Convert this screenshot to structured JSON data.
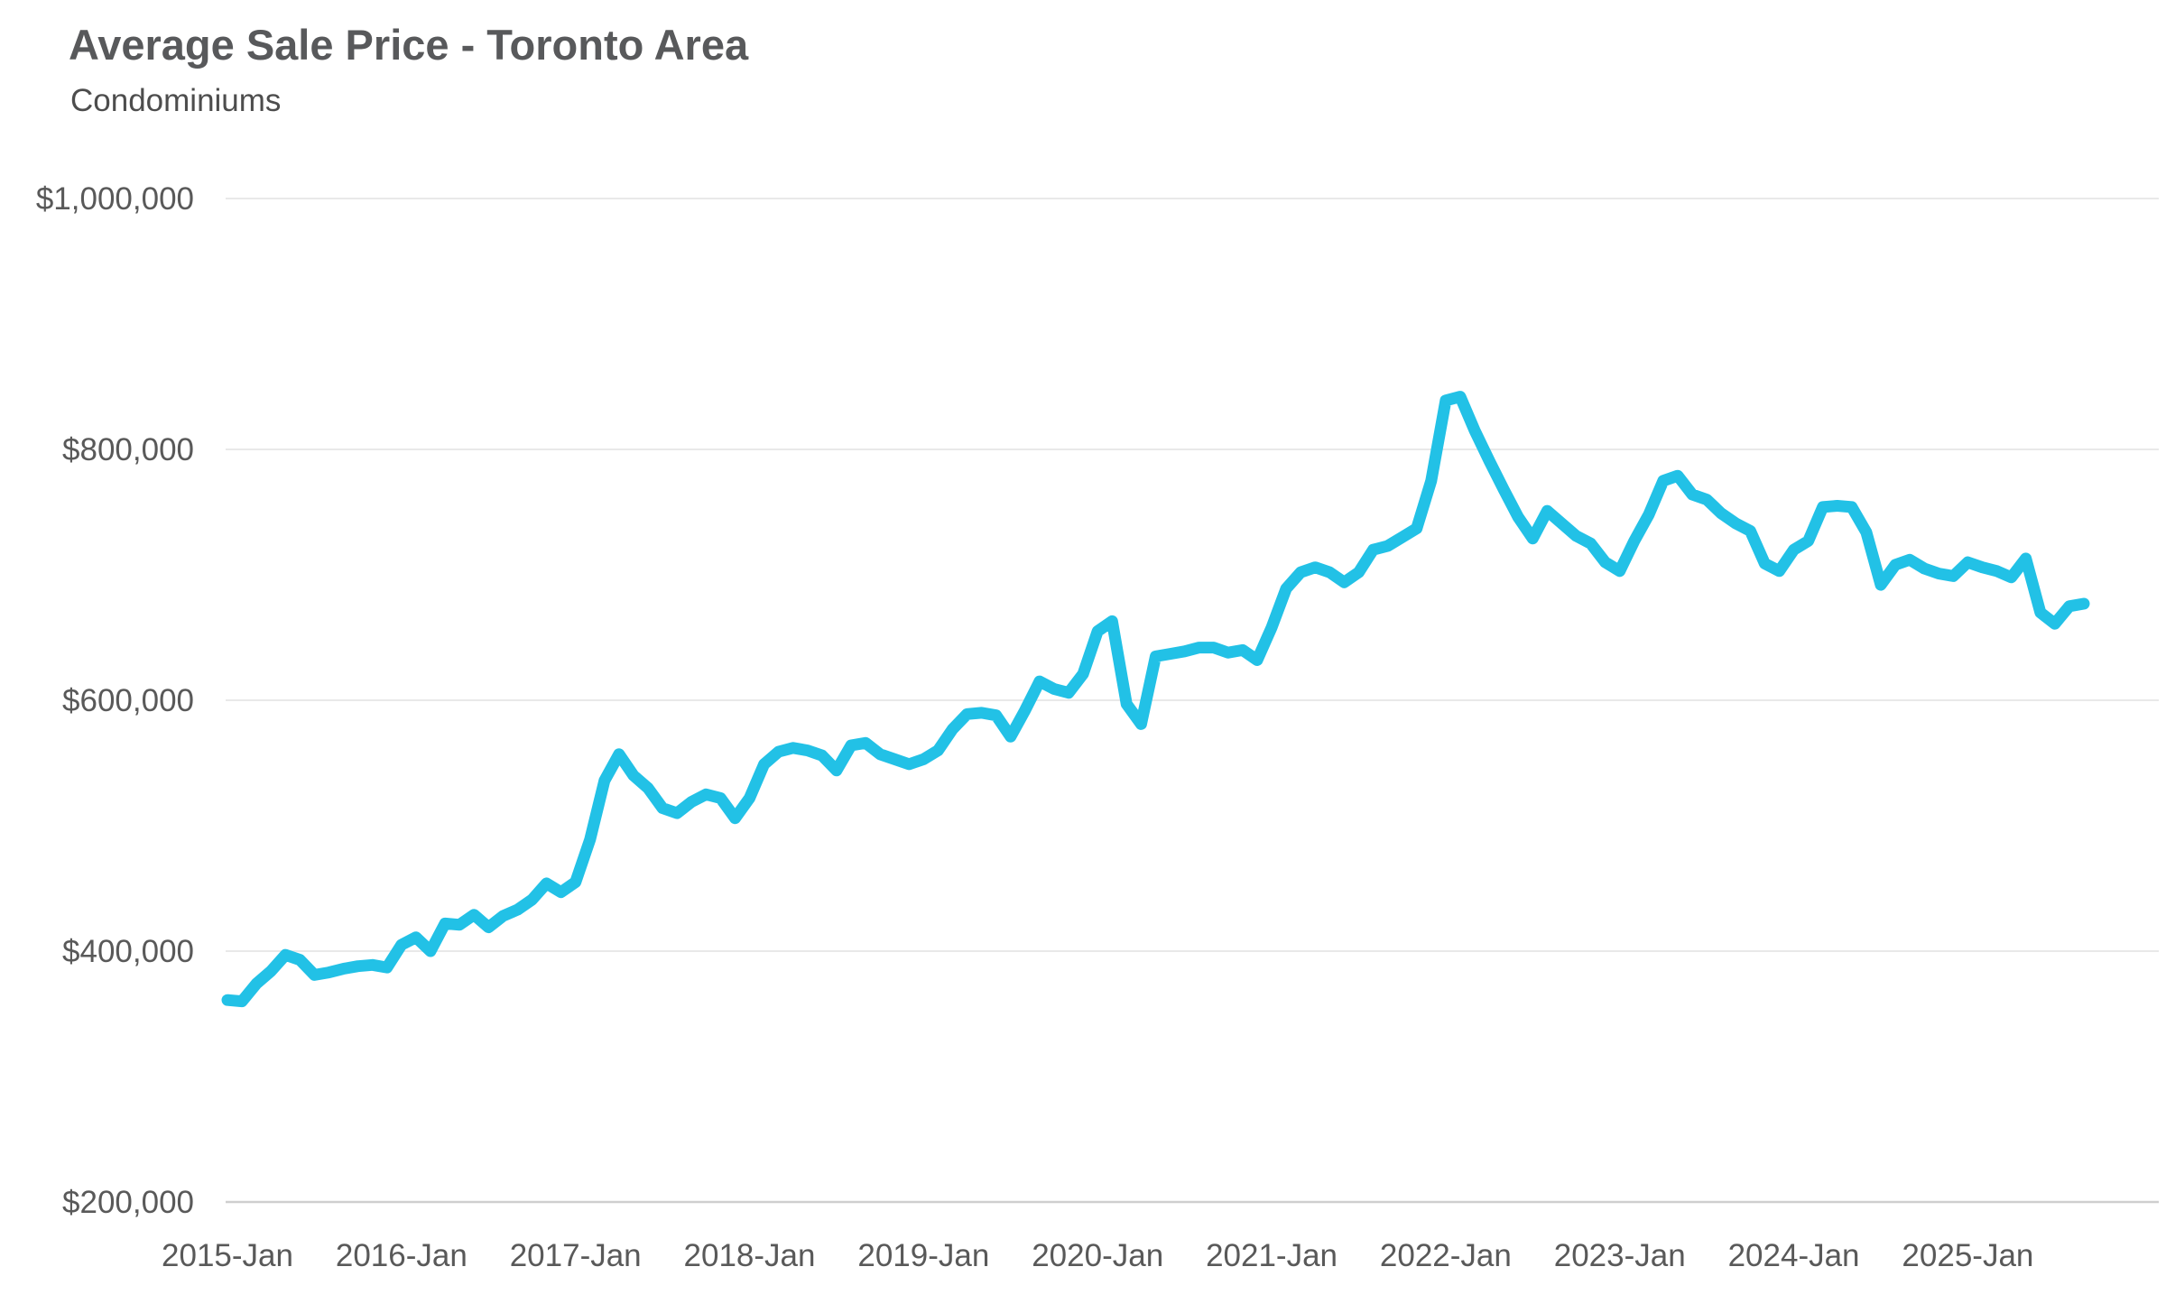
{
  "header": {
    "title": "Average Sale Price - Toronto Area",
    "subtitle": "Condominiums"
  },
  "chart_data": {
    "type": "line",
    "title": "Average Sale Price - Toronto Area",
    "subtitle": "Condominiums",
    "xlabel": "",
    "ylabel": "",
    "ylim": [
      200000,
      1000000
    ],
    "grid": "horizontal",
    "legend": "none",
    "line_color": "#22c1e6",
    "y_ticks": [
      {
        "value": 1000000,
        "label": "$1,000,000"
      },
      {
        "value": 800000,
        "label": "$800,000"
      },
      {
        "value": 600000,
        "label": "$600,000"
      },
      {
        "value": 400000,
        "label": "$400,000"
      },
      {
        "value": 200000,
        "label": "$200,000"
      }
    ],
    "x_ticks": [
      {
        "index": 0,
        "label": "2015-Jan"
      },
      {
        "index": 12,
        "label": "2016-Jan"
      },
      {
        "index": 24,
        "label": "2017-Jan"
      },
      {
        "index": 36,
        "label": "2018-Jan"
      },
      {
        "index": 48,
        "label": "2019-Jan"
      },
      {
        "index": 60,
        "label": "2020-Jan"
      },
      {
        "index": 72,
        "label": "2021-Jan"
      },
      {
        "index": 84,
        "label": "2022-Jan"
      },
      {
        "index": 96,
        "label": "2023-Jan"
      },
      {
        "index": 108,
        "label": "2024-Jan"
      },
      {
        "index": 120,
        "label": "2025-Jan"
      }
    ],
    "series": [
      {
        "name": "Average Sale Price - Condominiums",
        "months": [
          "2015-Jan",
          "2015-Feb",
          "2015-Mar",
          "2015-Apr",
          "2015-May",
          "2015-Jun",
          "2015-Jul",
          "2015-Aug",
          "2015-Sep",
          "2015-Oct",
          "2015-Nov",
          "2015-Dec",
          "2016-Jan",
          "2016-Feb",
          "2016-Mar",
          "2016-Apr",
          "2016-May",
          "2016-Jun",
          "2016-Jul",
          "2016-Aug",
          "2016-Sep",
          "2016-Oct",
          "2016-Nov",
          "2016-Dec",
          "2017-Jan",
          "2017-Feb",
          "2017-Mar",
          "2017-Apr",
          "2017-May",
          "2017-Jun",
          "2017-Jul",
          "2017-Aug",
          "2017-Sep",
          "2017-Oct",
          "2017-Nov",
          "2017-Dec",
          "2018-Jan",
          "2018-Feb",
          "2018-Mar",
          "2018-Apr",
          "2018-May",
          "2018-Jun",
          "2018-Jul",
          "2018-Aug",
          "2018-Sep",
          "2018-Oct",
          "2018-Nov",
          "2018-Dec",
          "2019-Jan",
          "2019-Feb",
          "2019-Mar",
          "2019-Apr",
          "2019-May",
          "2019-Jun",
          "2019-Jul",
          "2019-Aug",
          "2019-Sep",
          "2019-Oct",
          "2019-Nov",
          "2019-Dec",
          "2020-Jan",
          "2020-Feb",
          "2020-Mar",
          "2020-Apr",
          "2020-May",
          "2020-Jun",
          "2020-Jul",
          "2020-Aug",
          "2020-Sep",
          "2020-Oct",
          "2020-Nov",
          "2020-Dec",
          "2021-Jan",
          "2021-Feb",
          "2021-Mar",
          "2021-Apr",
          "2021-May",
          "2021-Jun",
          "2021-Jul",
          "2021-Aug",
          "2021-Sep",
          "2021-Oct",
          "2021-Nov",
          "2021-Dec",
          "2022-Jan",
          "2022-Feb",
          "2022-Mar",
          "2022-Apr",
          "2022-May",
          "2022-Jun",
          "2022-Jul",
          "2022-Aug",
          "2022-Sep",
          "2022-Oct",
          "2022-Nov",
          "2022-Dec",
          "2023-Jan",
          "2023-Feb",
          "2023-Mar",
          "2023-Apr",
          "2023-May",
          "2023-Jun",
          "2023-Jul",
          "2023-Aug",
          "2023-Sep",
          "2023-Oct",
          "2023-Nov",
          "2023-Dec",
          "2024-Jan",
          "2024-Feb",
          "2024-Mar",
          "2024-Apr",
          "2024-May",
          "2024-Jun",
          "2024-Jul",
          "2024-Aug",
          "2024-Sep",
          "2024-Oct",
          "2024-Nov",
          "2024-Dec",
          "2025-Jan",
          "2025-Feb",
          "2025-Mar",
          "2025-Apr",
          "2025-May",
          "2025-Jun",
          "2025-Jul",
          "2025-Aug",
          "2025-Sep"
        ],
        "values": [
          361000,
          360000,
          374000,
          384000,
          397000,
          393000,
          381000,
          383000,
          386000,
          388000,
          389000,
          387000,
          405000,
          411000,
          400000,
          422000,
          421000,
          429000,
          419000,
          428000,
          433000,
          441000,
          454000,
          447000,
          455000,
          489000,
          536000,
          557000,
          540000,
          530000,
          514000,
          510000,
          519000,
          525000,
          522000,
          506000,
          522000,
          549000,
          559000,
          562000,
          560000,
          556000,
          544000,
          564000,
          566000,
          557000,
          553000,
          549000,
          553000,
          560000,
          577000,
          589000,
          590000,
          588000,
          571000,
          592000,
          615000,
          609000,
          606000,
          621000,
          655000,
          663000,
          597000,
          581000,
          635000,
          637000,
          639000,
          642000,
          642000,
          638000,
          640000,
          632000,
          658000,
          689000,
          702000,
          706000,
          702000,
          694000,
          702000,
          720000,
          723000,
          730000,
          737000,
          775000,
          839000,
          842000,
          815000,
          791000,
          768000,
          746000,
          729000,
          751000,
          741000,
          731000,
          725000,
          710000,
          703000,
          727000,
          748000,
          775000,
          779000,
          764000,
          760000,
          749000,
          741000,
          735000,
          709000,
          703000,
          720000,
          727000,
          754000,
          755000,
          754000,
          734000,
          692000,
          708000,
          712000,
          705000,
          701000,
          699000,
          710000,
          706000,
          703000,
          698000,
          713000,
          670000,
          661000,
          675000,
          677000
        ]
      }
    ],
    "colors": {
      "line": "#22c1e6",
      "gridline": "#e9e9e9",
      "axis_line": "#cfcfcf",
      "tick_text": "#595959",
      "title_text": "#58595b"
    }
  }
}
